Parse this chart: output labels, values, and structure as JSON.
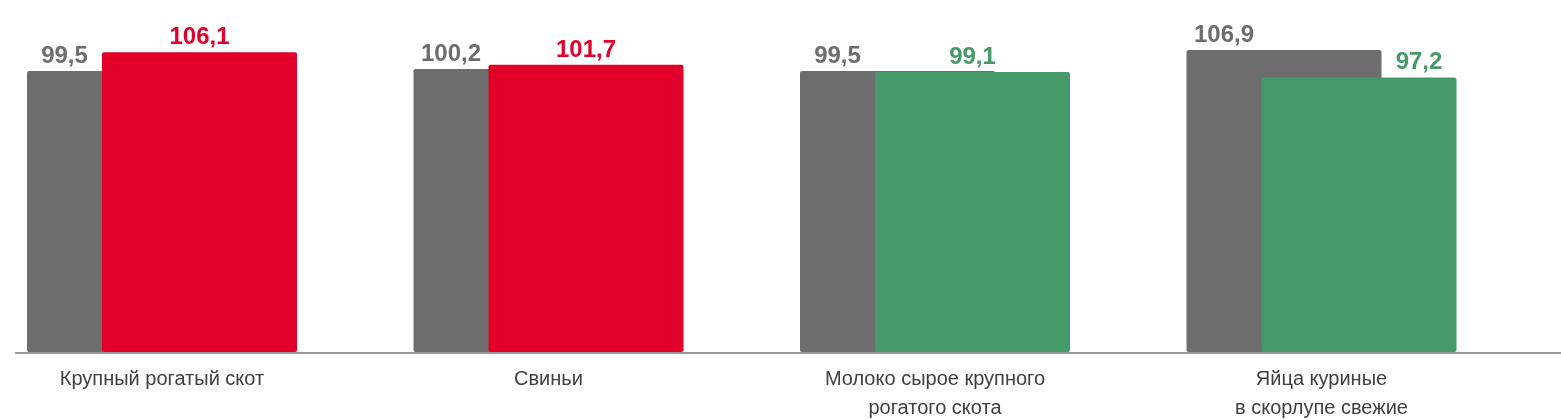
{
  "chart_data": {
    "type": "bar",
    "categories": [
      "Крупный рогатый скот",
      "Свиньи",
      "Молоко сырое крупного\nрогатого скота",
      "Яйца куриные\nв скорлупе свежие"
    ],
    "tick_labels": "x",
    "series": [
      {
        "color": "#6d6d6d",
        "values": [
          99.5,
          100.2,
          99.5,
          106.9
        ],
        "value_labels": [
          "99,5",
          "100,2",
          "99,5",
          "106,9"
        ]
      },
      {
        "colors": [
          "#e2002a",
          "#e2002a",
          "#469a69",
          "#469a69"
        ],
        "values": [
          106.1,
          101.7,
          99.1,
          97.2
        ],
        "value_labels": [
          "106,1",
          "101,7",
          "99,1",
          "97,2"
        ]
      }
    ]
  }
}
